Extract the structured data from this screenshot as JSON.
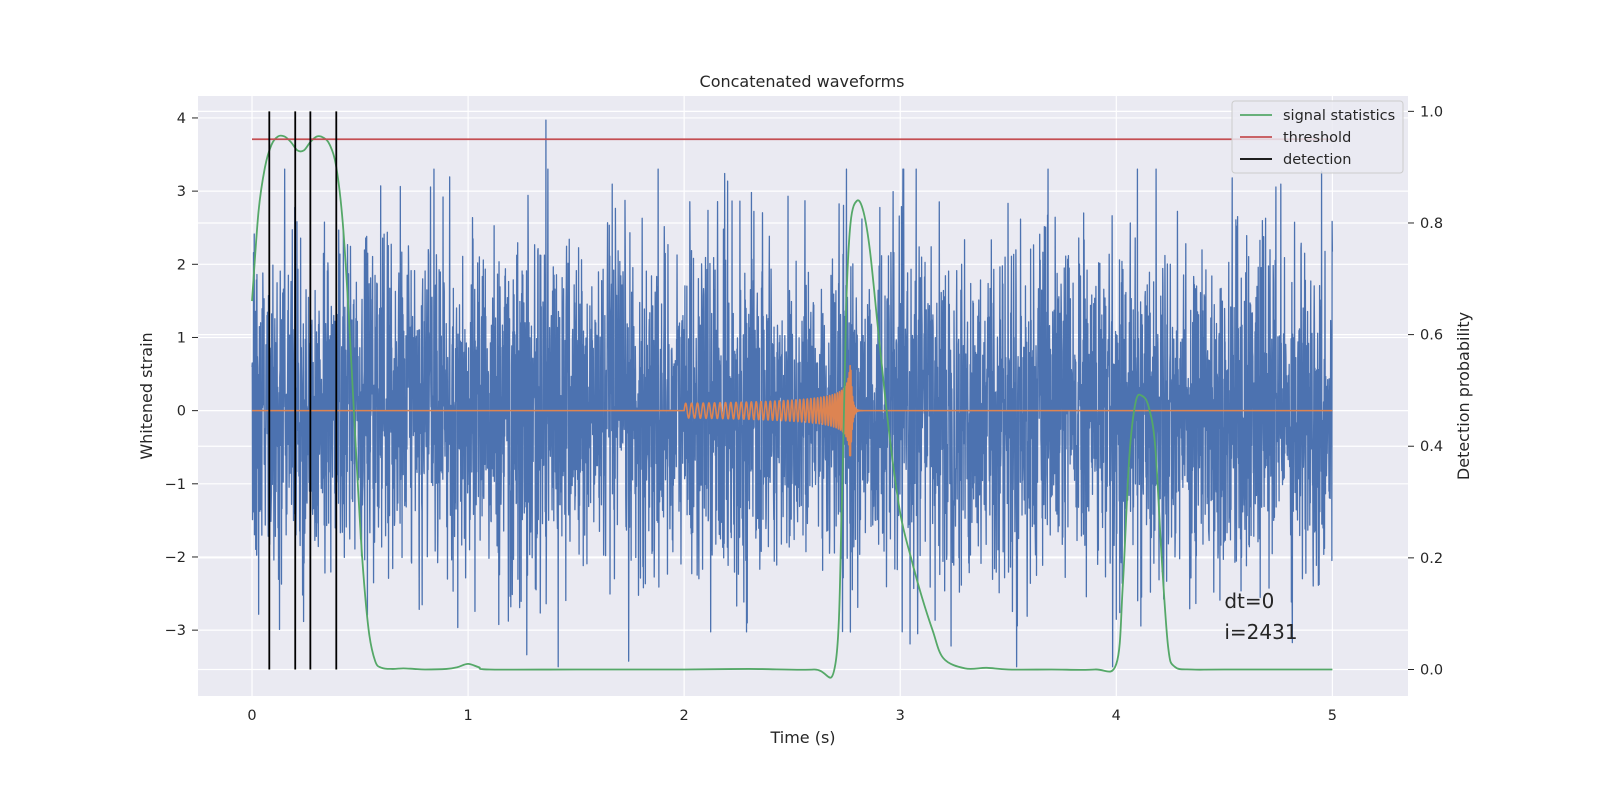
{
  "chart_data": {
    "type": "line",
    "title": "Concatenated waveforms",
    "xlabel": "Time (s)",
    "ylabel": "Whitened strain",
    "y2label": "Detection probability",
    "xlim": [
      -0.25,
      5.35
    ],
    "ylim": [
      -3.9,
      4.3
    ],
    "y2lim": [
      -0.0475,
      1.0275
    ],
    "xticks": [
      0,
      1,
      2,
      3,
      4,
      5
    ],
    "yticks": [
      -3,
      -2,
      -1,
      0,
      1,
      2,
      3,
      4
    ],
    "y2ticks": [
      0.0,
      0.2,
      0.4,
      0.6,
      0.8,
      1.0
    ],
    "xtick_labels": [
      "0",
      "1",
      "2",
      "3",
      "4",
      "5"
    ],
    "ytick_labels": [
      "−3",
      "−2",
      "−1",
      "0",
      "1",
      "2",
      "3",
      "4"
    ],
    "y2tick_labels": [
      "0.0",
      "0.2",
      "0.4",
      "0.6",
      "0.8",
      "1.0"
    ],
    "grid": true,
    "legend_position": "top-right",
    "series": [
      {
        "kind": "noise",
        "axis": "left",
        "color": "#4c72b0",
        "x_range": [
          0,
          5
        ],
        "typical_amplitude": 1.2,
        "peak_amplitude": 3.97,
        "peak_at": 1.36
      },
      {
        "kind": "chirp",
        "axis": "left",
        "color": "#dd8452",
        "baseline": 0.0,
        "x_range": [
          0,
          5
        ],
        "chirp_start": 2.0,
        "chirp_end": 2.77,
        "start_amplitude": 0.1,
        "peak_amplitude": 0.7
      },
      {
        "name": "signal statistics",
        "axis": "right",
        "color": "#55a868",
        "x": [
          0,
          0.03,
          0.06,
          0.09,
          0.12,
          0.15,
          0.18,
          0.21,
          0.24,
          0.27,
          0.3,
          0.33,
          0.36,
          0.39,
          0.42,
          0.45,
          0.48,
          0.51,
          0.54,
          0.57,
          0.6,
          0.65,
          0.7,
          0.75,
          0.8,
          0.9,
          0.95,
          1.0,
          1.05,
          1.1,
          1.5,
          2.0,
          2.3,
          2.6,
          2.7,
          2.73,
          2.75,
          2.77,
          2.8,
          2.83,
          2.86,
          2.9,
          2.95,
          3.0,
          3.05,
          3.1,
          3.15,
          3.2,
          3.3,
          3.4,
          3.5,
          3.7,
          3.9,
          4.0,
          4.03,
          4.06,
          4.09,
          4.12,
          4.15,
          4.18,
          4.21,
          4.24,
          4.27,
          4.35,
          4.5,
          5.0
        ],
        "y": [
          0.66,
          0.82,
          0.9,
          0.94,
          0.955,
          0.955,
          0.945,
          0.93,
          0.93,
          0.945,
          0.955,
          0.953,
          0.94,
          0.9,
          0.8,
          0.62,
          0.4,
          0.2,
          0.07,
          0.015,
          0.003,
          0.001,
          0.002,
          0.001,
          0.0,
          0.001,
          0.004,
          0.01,
          0.004,
          0.0,
          0.0,
          0.0,
          0.001,
          0.0,
          0.01,
          0.3,
          0.65,
          0.8,
          0.84,
          0.82,
          0.75,
          0.6,
          0.42,
          0.28,
          0.2,
          0.13,
          0.07,
          0.02,
          0.002,
          0.003,
          0.0,
          0.0,
          0.0,
          0.01,
          0.15,
          0.38,
          0.48,
          0.49,
          0.47,
          0.4,
          0.2,
          0.04,
          0.005,
          0.0,
          0.0,
          0.0
        ]
      },
      {
        "name": "threshold",
        "axis": "right",
        "color": "#c44e52",
        "x": [
          0,
          5
        ],
        "y": [
          0.95,
          0.95
        ]
      },
      {
        "name": "detection",
        "axis": "right",
        "color": "#000000",
        "x": [
          0.08,
          0.2,
          0.27,
          0.39
        ],
        "y_range": [
          0.0,
          1.0
        ]
      }
    ],
    "annotations": [
      {
        "text": "dt=0",
        "x": 4.5,
        "y": -2.7
      },
      {
        "text": "i=2431",
        "x": 4.5,
        "y": -3.12
      }
    ]
  }
}
